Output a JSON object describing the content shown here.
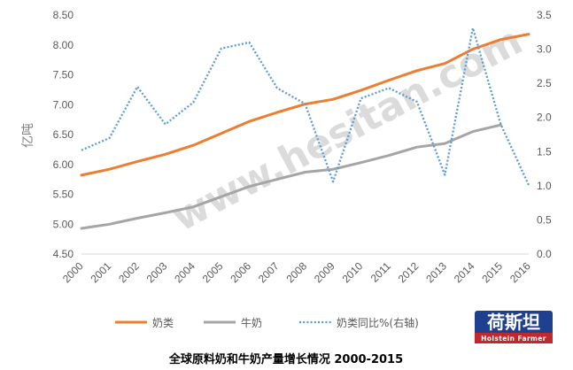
{
  "chart_data": {
    "type": "line",
    "title": "",
    "caption": "全球原料奶和牛奶产量增长情况  2000-2015",
    "ylabel": "亿吨",
    "categories": [
      "2000",
      "2001",
      "2002",
      "2003",
      "2004",
      "2005",
      "2006",
      "2007",
      "2008",
      "2009",
      "2010",
      "2011",
      "2012",
      "2013",
      "2014",
      "2015",
      "2016"
    ],
    "y_left": {
      "ylim": [
        4.5,
        8.5
      ],
      "ticks": [
        "8.50",
        "8.00",
        "7.50",
        "7.00",
        "6.50",
        "6.00",
        "5.50",
        "5.00",
        "4.50"
      ]
    },
    "y_right": {
      "ylim": [
        0.0,
        3.5
      ],
      "ticks": [
        "3.5",
        "3.0",
        "2.5",
        "2.0",
        "1.5",
        "1.0",
        "0.5",
        "0.0"
      ]
    },
    "series": [
      {
        "name": "奶类",
        "axis": "left",
        "color": "#ed7d31",
        "style": "solid",
        "values": [
          5.82,
          5.92,
          6.05,
          6.17,
          6.32,
          6.52,
          6.72,
          6.87,
          7.01,
          7.09,
          7.24,
          7.41,
          7.57,
          7.69,
          7.93,
          8.09,
          8.18
        ]
      },
      {
        "name": "牛奶",
        "axis": "left",
        "color": "#a5a5a5",
        "style": "solid",
        "values": [
          4.93,
          5.0,
          5.1,
          5.19,
          5.29,
          5.46,
          5.63,
          5.75,
          5.87,
          5.92,
          6.03,
          6.15,
          6.29,
          6.35,
          6.55,
          6.66,
          null
        ]
      },
      {
        "name": "奶类同比%(右轴)",
        "axis": "right",
        "color": "#5b9bd5",
        "style": "dotted",
        "values": [
          1.52,
          1.7,
          2.45,
          1.9,
          2.22,
          3.01,
          3.1,
          2.43,
          2.2,
          1.06,
          2.28,
          2.43,
          2.23,
          1.16,
          3.31,
          1.9,
          1.01
        ]
      }
    ],
    "grid": false,
    "legend": "bottom"
  },
  "watermark": "www.hesitan.com",
  "logo": {
    "main": "荷斯坦",
    "sub": "Holstein Farmer"
  }
}
